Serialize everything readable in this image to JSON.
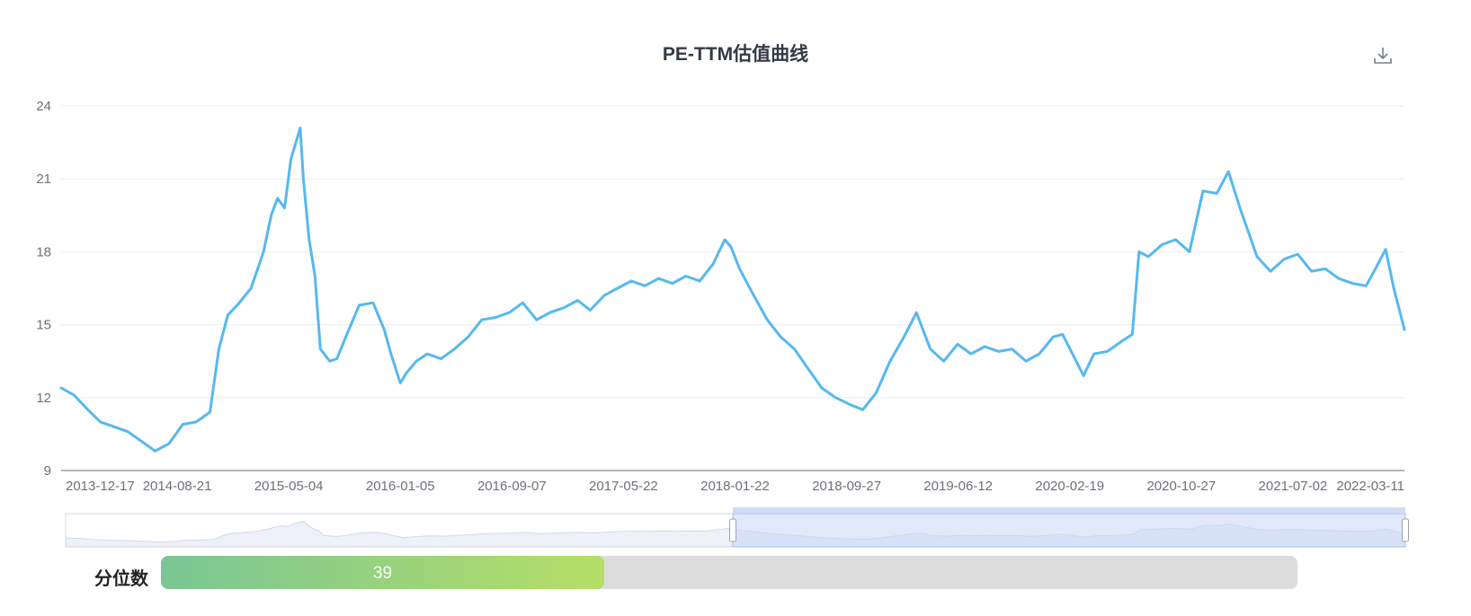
{
  "chart_data": {
    "type": "line",
    "title": "PE-TTM估值曲线",
    "xlabel": "",
    "ylabel": "",
    "ylim": [
      9,
      24
    ],
    "y_ticks": [
      9,
      12,
      15,
      18,
      21,
      24
    ],
    "x_tick_labels": [
      "2013-12-17",
      "2014-08-21",
      "2015-05-04",
      "2016-01-05",
      "2016-09-07",
      "2017-05-22",
      "2018-01-22",
      "2018-09-27",
      "2019-06-12",
      "2020-02-19",
      "2020-10-27",
      "2021-07-02",
      "2022-03-11"
    ],
    "grid": true,
    "line_color": "#56b8f0",
    "series": [
      {
        "x": [
          "2013-12-17",
          "2014-01-15",
          "2014-02-15",
          "2014-03-15",
          "2014-04-15",
          "2014-05-15",
          "2014-06-15",
          "2014-07-15",
          "2014-08-15",
          "2014-09-15",
          "2014-10-15",
          "2014-11-15",
          "2014-12-05",
          "2014-12-25",
          "2015-01-15",
          "2015-02-15",
          "2015-03-15",
          "2015-04-01",
          "2015-04-15",
          "2015-05-01",
          "2015-05-15",
          "2015-06-05",
          "2015-06-12",
          "2015-06-25",
          "2015-07-08",
          "2015-07-20",
          "2015-08-10",
          "2015-08-26",
          "2015-09-15",
          "2015-10-15",
          "2015-11-15",
          "2015-12-10",
          "2015-12-25",
          "2016-01-15",
          "2016-01-28",
          "2016-02-20",
          "2016-03-15",
          "2016-04-15",
          "2016-05-15",
          "2016-06-15",
          "2016-07-15",
          "2016-08-15",
          "2016-09-15",
          "2016-10-15",
          "2016-11-15",
          "2016-12-15",
          "2017-01-15",
          "2017-02-15",
          "2017-03-15",
          "2017-04-15",
          "2017-05-15",
          "2017-06-15",
          "2017-07-15",
          "2017-08-15",
          "2017-09-15",
          "2017-10-15",
          "2017-11-15",
          "2017-12-15",
          "2018-01-10",
          "2018-01-24",
          "2018-02-12",
          "2018-03-10",
          "2018-04-15",
          "2018-05-15",
          "2018-06-15",
          "2018-07-15",
          "2018-08-15",
          "2018-09-15",
          "2018-10-19",
          "2018-11-15",
          "2018-12-15",
          "2019-01-15",
          "2019-02-15",
          "2019-03-15",
          "2019-04-15",
          "2019-05-15",
          "2019-06-15",
          "2019-07-15",
          "2019-08-15",
          "2019-09-15",
          "2019-10-15",
          "2019-11-15",
          "2019-12-15",
          "2020-01-15",
          "2020-02-05",
          "2020-03-23",
          "2020-04-15",
          "2020-05-15",
          "2020-06-15",
          "2020-07-10",
          "2020-07-25",
          "2020-08-15",
          "2020-09-15",
          "2020-10-15",
          "2020-11-15",
          "2020-12-15",
          "2021-01-15",
          "2021-02-10",
          "2021-03-08",
          "2021-04-15",
          "2021-05-15",
          "2021-06-15",
          "2021-07-15",
          "2021-08-15",
          "2021-09-15",
          "2021-10-15",
          "2021-11-15",
          "2021-12-15",
          "2022-01-05",
          "2022-01-28",
          "2022-02-15",
          "2022-03-11"
        ],
        "values": [
          12.4,
          12.1,
          11.5,
          11.0,
          10.8,
          10.6,
          10.2,
          9.8,
          10.1,
          10.9,
          11.0,
          11.4,
          14.0,
          15.4,
          15.8,
          16.5,
          18.0,
          19.5,
          20.2,
          19.8,
          21.8,
          23.1,
          21.0,
          18.5,
          17.0,
          14.0,
          13.5,
          13.6,
          14.5,
          15.8,
          15.9,
          14.8,
          13.8,
          12.6,
          13.0,
          13.5,
          13.8,
          13.6,
          14.0,
          14.5,
          15.2,
          15.3,
          15.5,
          15.9,
          15.2,
          15.5,
          15.7,
          16.0,
          15.6,
          16.2,
          16.5,
          16.8,
          16.6,
          16.9,
          16.7,
          17.0,
          16.8,
          17.5,
          18.5,
          18.2,
          17.3,
          16.4,
          15.2,
          14.5,
          14.0,
          13.2,
          12.4,
          12.0,
          11.7,
          11.5,
          12.2,
          13.5,
          14.5,
          15.5,
          14.0,
          13.5,
          14.2,
          13.8,
          14.1,
          13.9,
          14.0,
          13.5,
          13.8,
          14.5,
          14.6,
          12.9,
          13.8,
          13.9,
          14.3,
          14.6,
          18.0,
          17.8,
          18.3,
          18.5,
          18.0,
          20.5,
          20.4,
          21.3,
          19.8,
          17.8,
          17.2,
          17.7,
          17.9,
          17.2,
          17.3,
          16.9,
          16.7,
          16.6,
          17.3,
          18.1,
          16.5,
          14.8
        ]
      }
    ]
  },
  "slider": {
    "start": "2018-01-22",
    "end": "2022-03-11"
  },
  "percentile": {
    "label": "分位数",
    "value": 39,
    "display": "39",
    "fill_color_start": "#79c695",
    "fill_color_end": "#b6de65",
    "track_color": "#dcdcdc"
  },
  "toolbar": {
    "download_icon": "download-icon"
  }
}
